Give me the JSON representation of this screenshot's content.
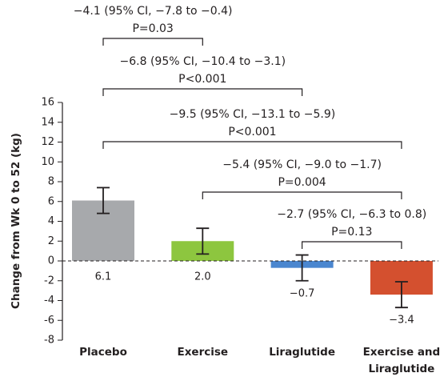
{
  "chart_data": {
    "type": "bar",
    "y_label": "Change from Wk 0 to 52 (kg)",
    "categories": [
      "Placebo",
      "Exercise",
      "Liraglutide",
      "Exercise and Liraglutide"
    ],
    "values": [
      6.1,
      2.0,
      -0.7,
      -3.4
    ],
    "value_labels": [
      "6.1",
      "2.0",
      "−0.7",
      "−3.4"
    ],
    "errors": [
      1.3,
      1.3,
      1.3,
      1.3
    ],
    "colors": [
      "#a7a9ac",
      "#8dc63f",
      "#4a86cf",
      "#d4502f"
    ],
    "ylim": [
      -8,
      16
    ],
    "yticks": [
      -8,
      -6,
      -4,
      -2,
      0,
      2,
      4,
      6,
      8,
      10,
      12,
      14,
      16
    ],
    "comparisons": [
      {
        "label": "−4.1 (95% CI, −7.8 to −0.4)",
        "p": "P=0.03"
      },
      {
        "label": "−6.8 (95% CI, −10.4 to −3.1)",
        "p": "P<0.001"
      },
      {
        "label": "−9.5 (95% CI, −13.1 to −5.9)",
        "p": "P<0.001"
      },
      {
        "label": "−5.4 (95% CI, −9.0 to −1.7)",
        "p": "P=0.004"
      },
      {
        "label": "−2.7 (95% CI, −6.3 to 0.8)",
        "p": "P=0.13"
      }
    ]
  }
}
